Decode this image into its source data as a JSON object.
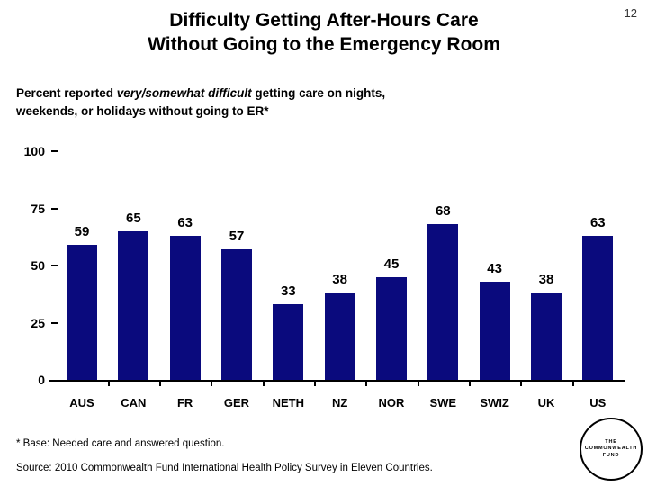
{
  "page": {
    "number": "12"
  },
  "title": {
    "line1": "Difficulty Getting After-Hours Care",
    "line2": "Without Going to the Emergency Room"
  },
  "subtitle": {
    "line1_prefix": "Percent reported ",
    "line1_emphasis": "very/somewhat difficult",
    "line1_suffix": " getting care on nights,",
    "line2": "weekends, or holidays without going to ER*"
  },
  "chart_data": {
    "type": "bar",
    "title": "Difficulty Getting After-Hours Care Without Going to the Emergency Room",
    "subtitle": "Percent reported very/somewhat difficult getting care on nights, weekends, or holidays without going to ER*",
    "categories": [
      "AUS",
      "CAN",
      "FR",
      "GER",
      "NETH",
      "NZ",
      "NOR",
      "SWE",
      "SWIZ",
      "UK",
      "US"
    ],
    "values": [
      59,
      65,
      63,
      57,
      33,
      38,
      45,
      68,
      43,
      38,
      63
    ],
    "xlabel": "",
    "ylabel": "",
    "ylim": [
      0,
      100
    ],
    "yticks": [
      0,
      25,
      50,
      75,
      100
    ],
    "grid": false,
    "legend_position": "none",
    "bar_color": "#0a0a7d",
    "data_labels": true
  },
  "footnotes": {
    "base": "* Base: Needed care and answered question.",
    "source": "Source: 2010 Commonwealth Fund International Health Policy Survey in Eleven Countries."
  },
  "logo": {
    "line1": "THE",
    "line2": "COMMONWEALTH",
    "line3": "FUND"
  }
}
